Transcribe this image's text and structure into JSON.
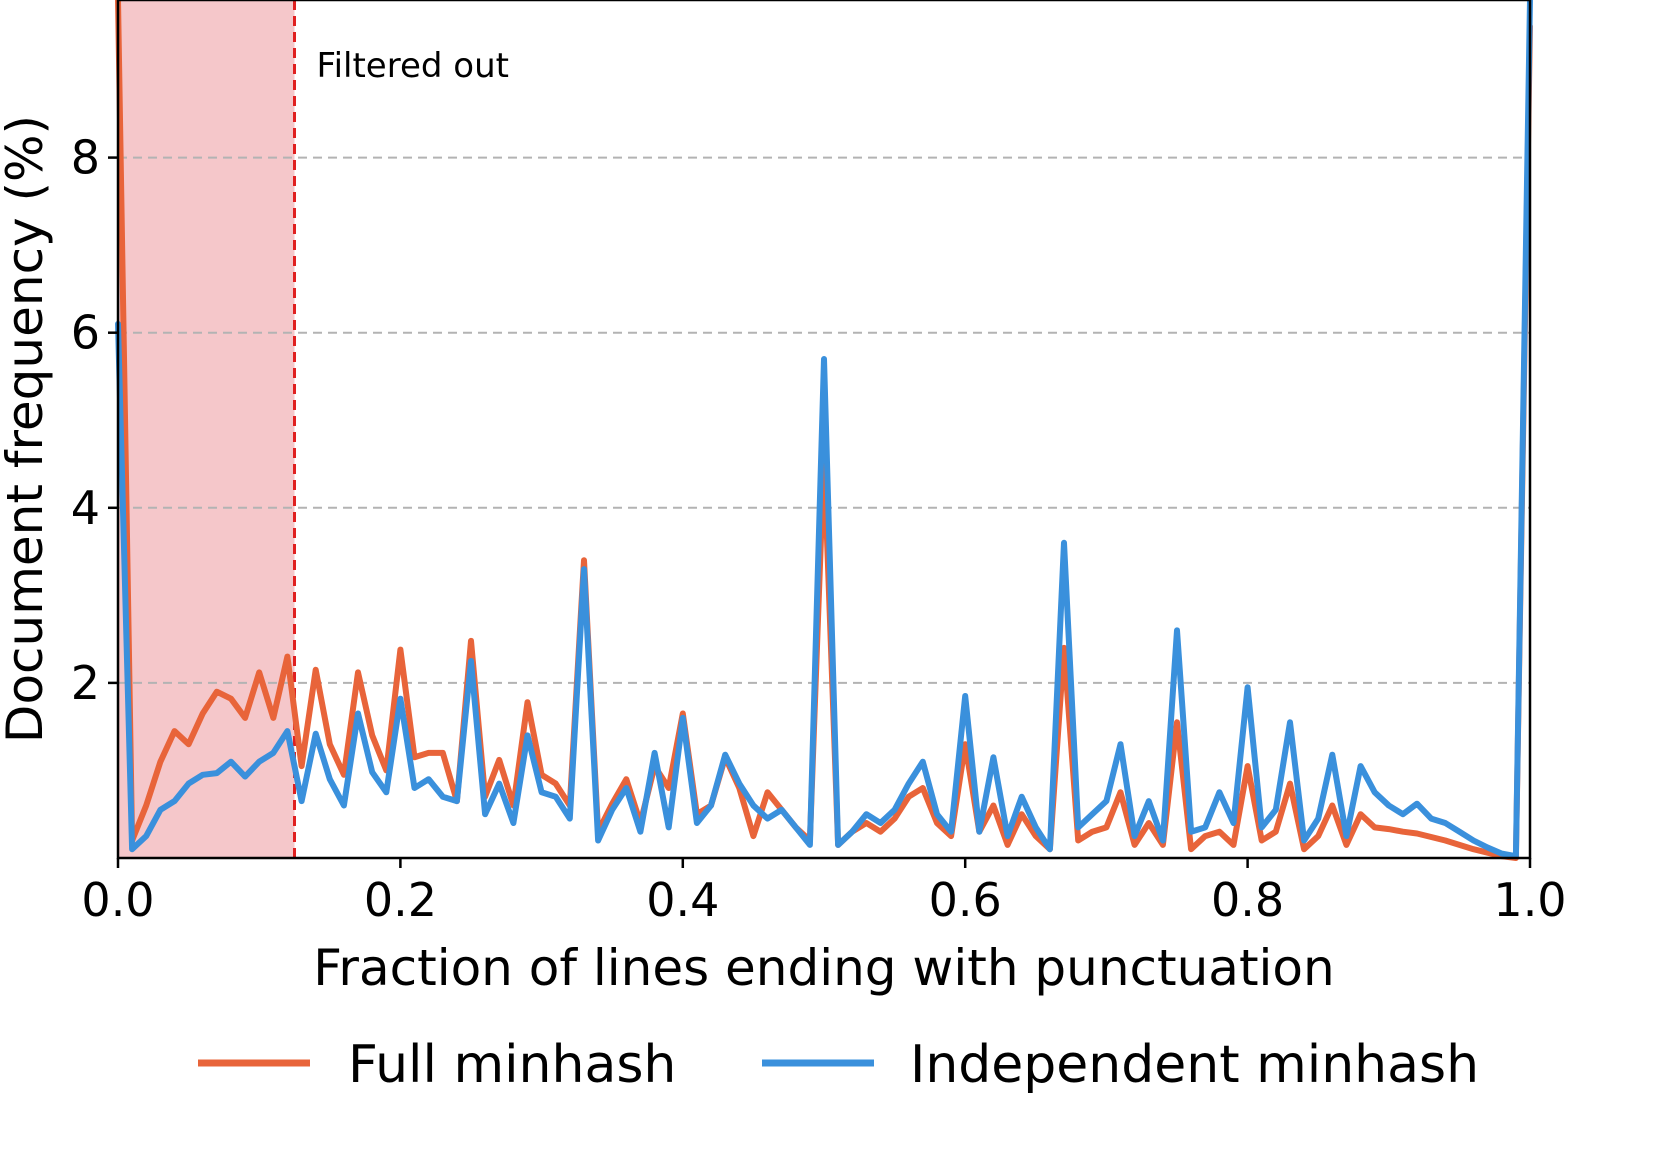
{
  "chart_data": {
    "type": "line",
    "title": "",
    "xlabel": "Fraction of lines ending with punctuation",
    "ylabel": "Document frequency (%)",
    "xlim": [
      0,
      1
    ],
    "ylim": [
      0,
      9.8
    ],
    "xticks": [
      0,
      0.2,
      0.4,
      0.6,
      0.8,
      1.0
    ],
    "xtick_labels": [
      "0.0",
      "0.2",
      "0.4",
      "0.6",
      "0.8",
      "1.0"
    ],
    "yticks": [
      2,
      4,
      6,
      8
    ],
    "ytick_labels": [
      "2",
      "4",
      "6",
      "8"
    ],
    "grid": "horizontal dashed",
    "legend": "bottom, below plot",
    "filter": {
      "threshold": 0.125,
      "label": "Filtered out",
      "region_color": "#f5c7ca",
      "line_color": "#e02020"
    },
    "x": [
      0.0,
      0.01,
      0.02,
      0.03,
      0.04,
      0.05,
      0.06,
      0.07,
      0.08,
      0.09,
      0.1,
      0.11,
      0.12,
      0.13,
      0.14,
      0.15,
      0.16,
      0.17,
      0.18,
      0.19,
      0.2,
      0.21,
      0.22,
      0.23,
      0.24,
      0.25,
      0.26,
      0.27,
      0.28,
      0.29,
      0.3,
      0.31,
      0.32,
      0.33,
      0.34,
      0.35,
      0.36,
      0.37,
      0.38,
      0.39,
      0.4,
      0.41,
      0.42,
      0.43,
      0.44,
      0.45,
      0.46,
      0.47,
      0.48,
      0.49,
      0.5,
      0.51,
      0.52,
      0.53,
      0.54,
      0.55,
      0.56,
      0.57,
      0.58,
      0.59,
      0.6,
      0.61,
      0.62,
      0.63,
      0.64,
      0.65,
      0.66,
      0.67,
      0.68,
      0.69,
      0.7,
      0.71,
      0.72,
      0.73,
      0.74,
      0.75,
      0.76,
      0.77,
      0.78,
      0.79,
      0.8,
      0.81,
      0.82,
      0.83,
      0.84,
      0.85,
      0.86,
      0.87,
      0.88,
      0.89,
      0.9,
      0.91,
      0.92,
      0.93,
      0.94,
      0.95,
      0.96,
      0.97,
      0.98,
      0.99,
      1.0
    ],
    "series": [
      {
        "name": "Full minhash",
        "color": "#e8643a",
        "values": [
          9.8,
          0.2,
          0.6,
          1.1,
          1.45,
          1.3,
          1.65,
          1.9,
          1.82,
          1.6,
          2.12,
          1.6,
          2.3,
          1.05,
          2.15,
          1.3,
          0.95,
          2.12,
          1.4,
          1.0,
          2.38,
          1.15,
          1.2,
          1.2,
          0.65,
          2.48,
          0.7,
          1.12,
          0.6,
          1.78,
          0.95,
          0.85,
          0.6,
          3.4,
          0.3,
          0.62,
          0.9,
          0.4,
          1.05,
          0.8,
          1.65,
          0.5,
          0.6,
          1.15,
          0.8,
          0.25,
          0.75,
          0.55,
          0.35,
          0.2,
          4.6,
          0.15,
          0.3,
          0.4,
          0.3,
          0.45,
          0.7,
          0.8,
          0.4,
          0.25,
          1.3,
          0.3,
          0.6,
          0.15,
          0.5,
          0.25,
          0.1,
          2.4,
          0.2,
          0.3,
          0.35,
          0.75,
          0.15,
          0.4,
          0.15,
          1.55,
          0.1,
          0.25,
          0.3,
          0.15,
          1.05,
          0.2,
          0.3,
          0.85,
          0.1,
          0.25,
          0.6,
          0.15,
          0.5,
          0.35,
          0.33,
          0.3,
          0.28,
          0.24,
          0.2,
          0.15,
          0.1,
          0.06,
          0.02,
          0.0,
          9.5
        ]
      },
      {
        "name": "Independent minhash",
        "color": "#3a90dc",
        "values": [
          6.1,
          0.1,
          0.25,
          0.55,
          0.65,
          0.85,
          0.95,
          0.97,
          1.1,
          0.93,
          1.1,
          1.2,
          1.45,
          0.65,
          1.42,
          0.9,
          0.6,
          1.65,
          0.98,
          0.75,
          1.82,
          0.8,
          0.9,
          0.7,
          0.65,
          2.25,
          0.5,
          0.85,
          0.4,
          1.4,
          0.75,
          0.7,
          0.45,
          3.3,
          0.2,
          0.55,
          0.8,
          0.3,
          1.2,
          0.35,
          1.6,
          0.4,
          0.6,
          1.18,
          0.85,
          0.6,
          0.45,
          0.55,
          0.35,
          0.15,
          5.7,
          0.15,
          0.3,
          0.5,
          0.4,
          0.55,
          0.85,
          1.1,
          0.5,
          0.3,
          1.85,
          0.3,
          1.15,
          0.25,
          0.7,
          0.35,
          0.1,
          3.6,
          0.35,
          0.5,
          0.65,
          1.3,
          0.25,
          0.65,
          0.2,
          2.6,
          0.3,
          0.35,
          0.75,
          0.4,
          1.95,
          0.35,
          0.55,
          1.55,
          0.2,
          0.45,
          1.18,
          0.25,
          1.05,
          0.75,
          0.6,
          0.5,
          0.62,
          0.45,
          0.4,
          0.3,
          0.2,
          0.12,
          0.05,
          0.02,
          9.8
        ]
      }
    ]
  }
}
